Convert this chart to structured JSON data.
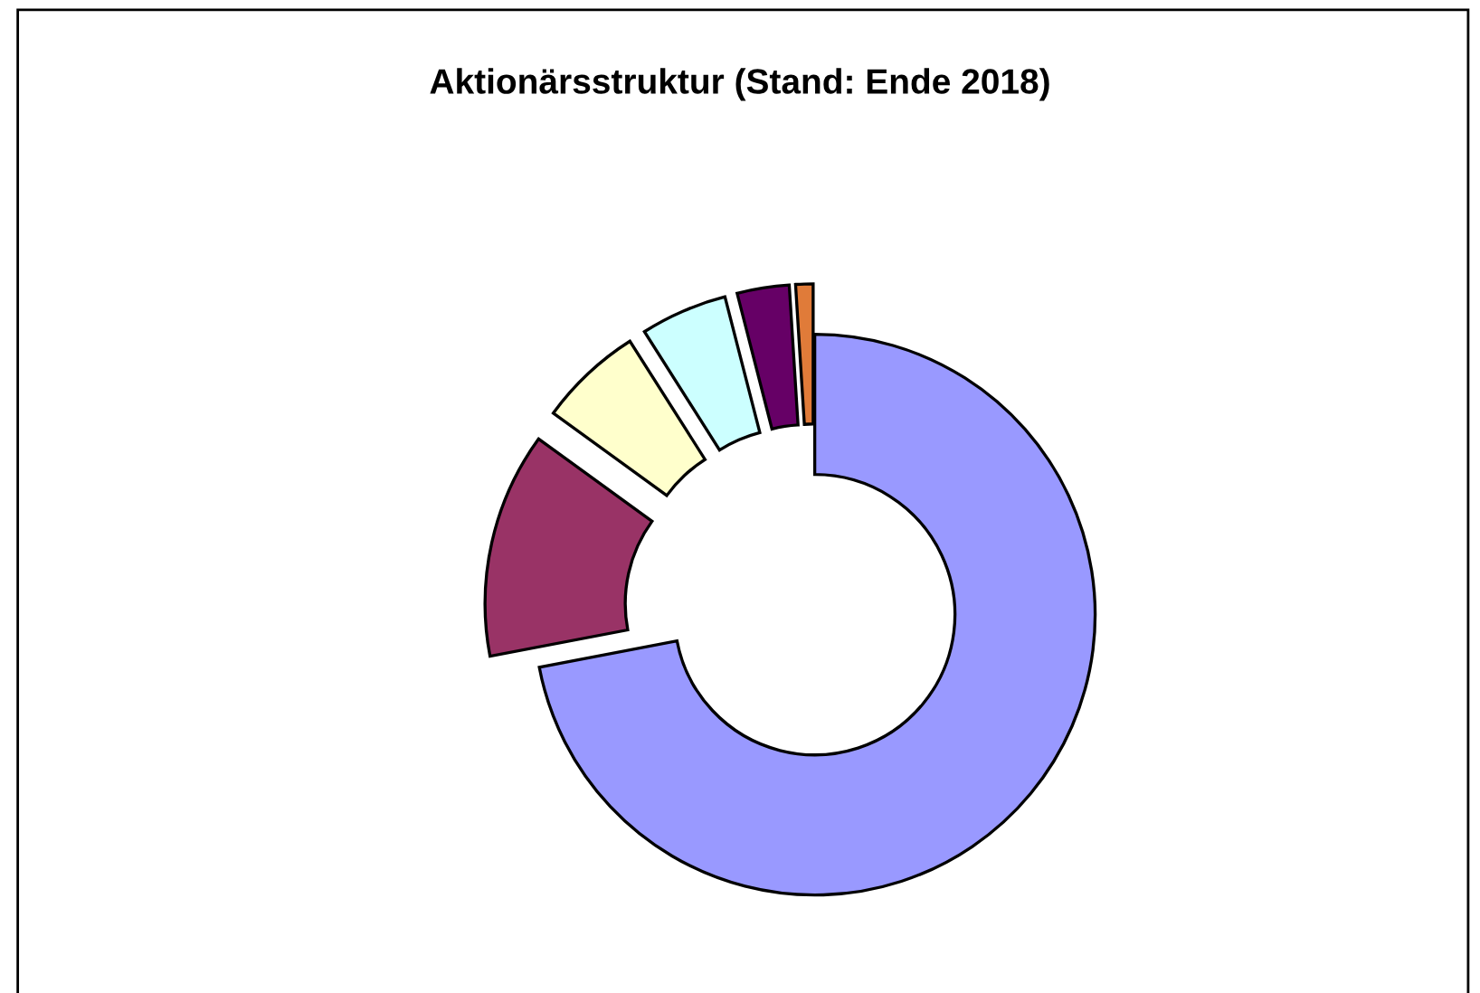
{
  "chart_data": {
    "type": "donut",
    "title": "Aktionärsstruktur (Stand: Ende 2018)",
    "categories": [
      null,
      null,
      null,
      null,
      null,
      null
    ],
    "values": [
      72,
      13,
      6,
      5,
      3,
      1
    ],
    "colors": [
      "#9999ff",
      "#993366",
      "#ffffcc",
      "#ccffff",
      "#660066",
      "#e07b39"
    ],
    "legend": false
  }
}
